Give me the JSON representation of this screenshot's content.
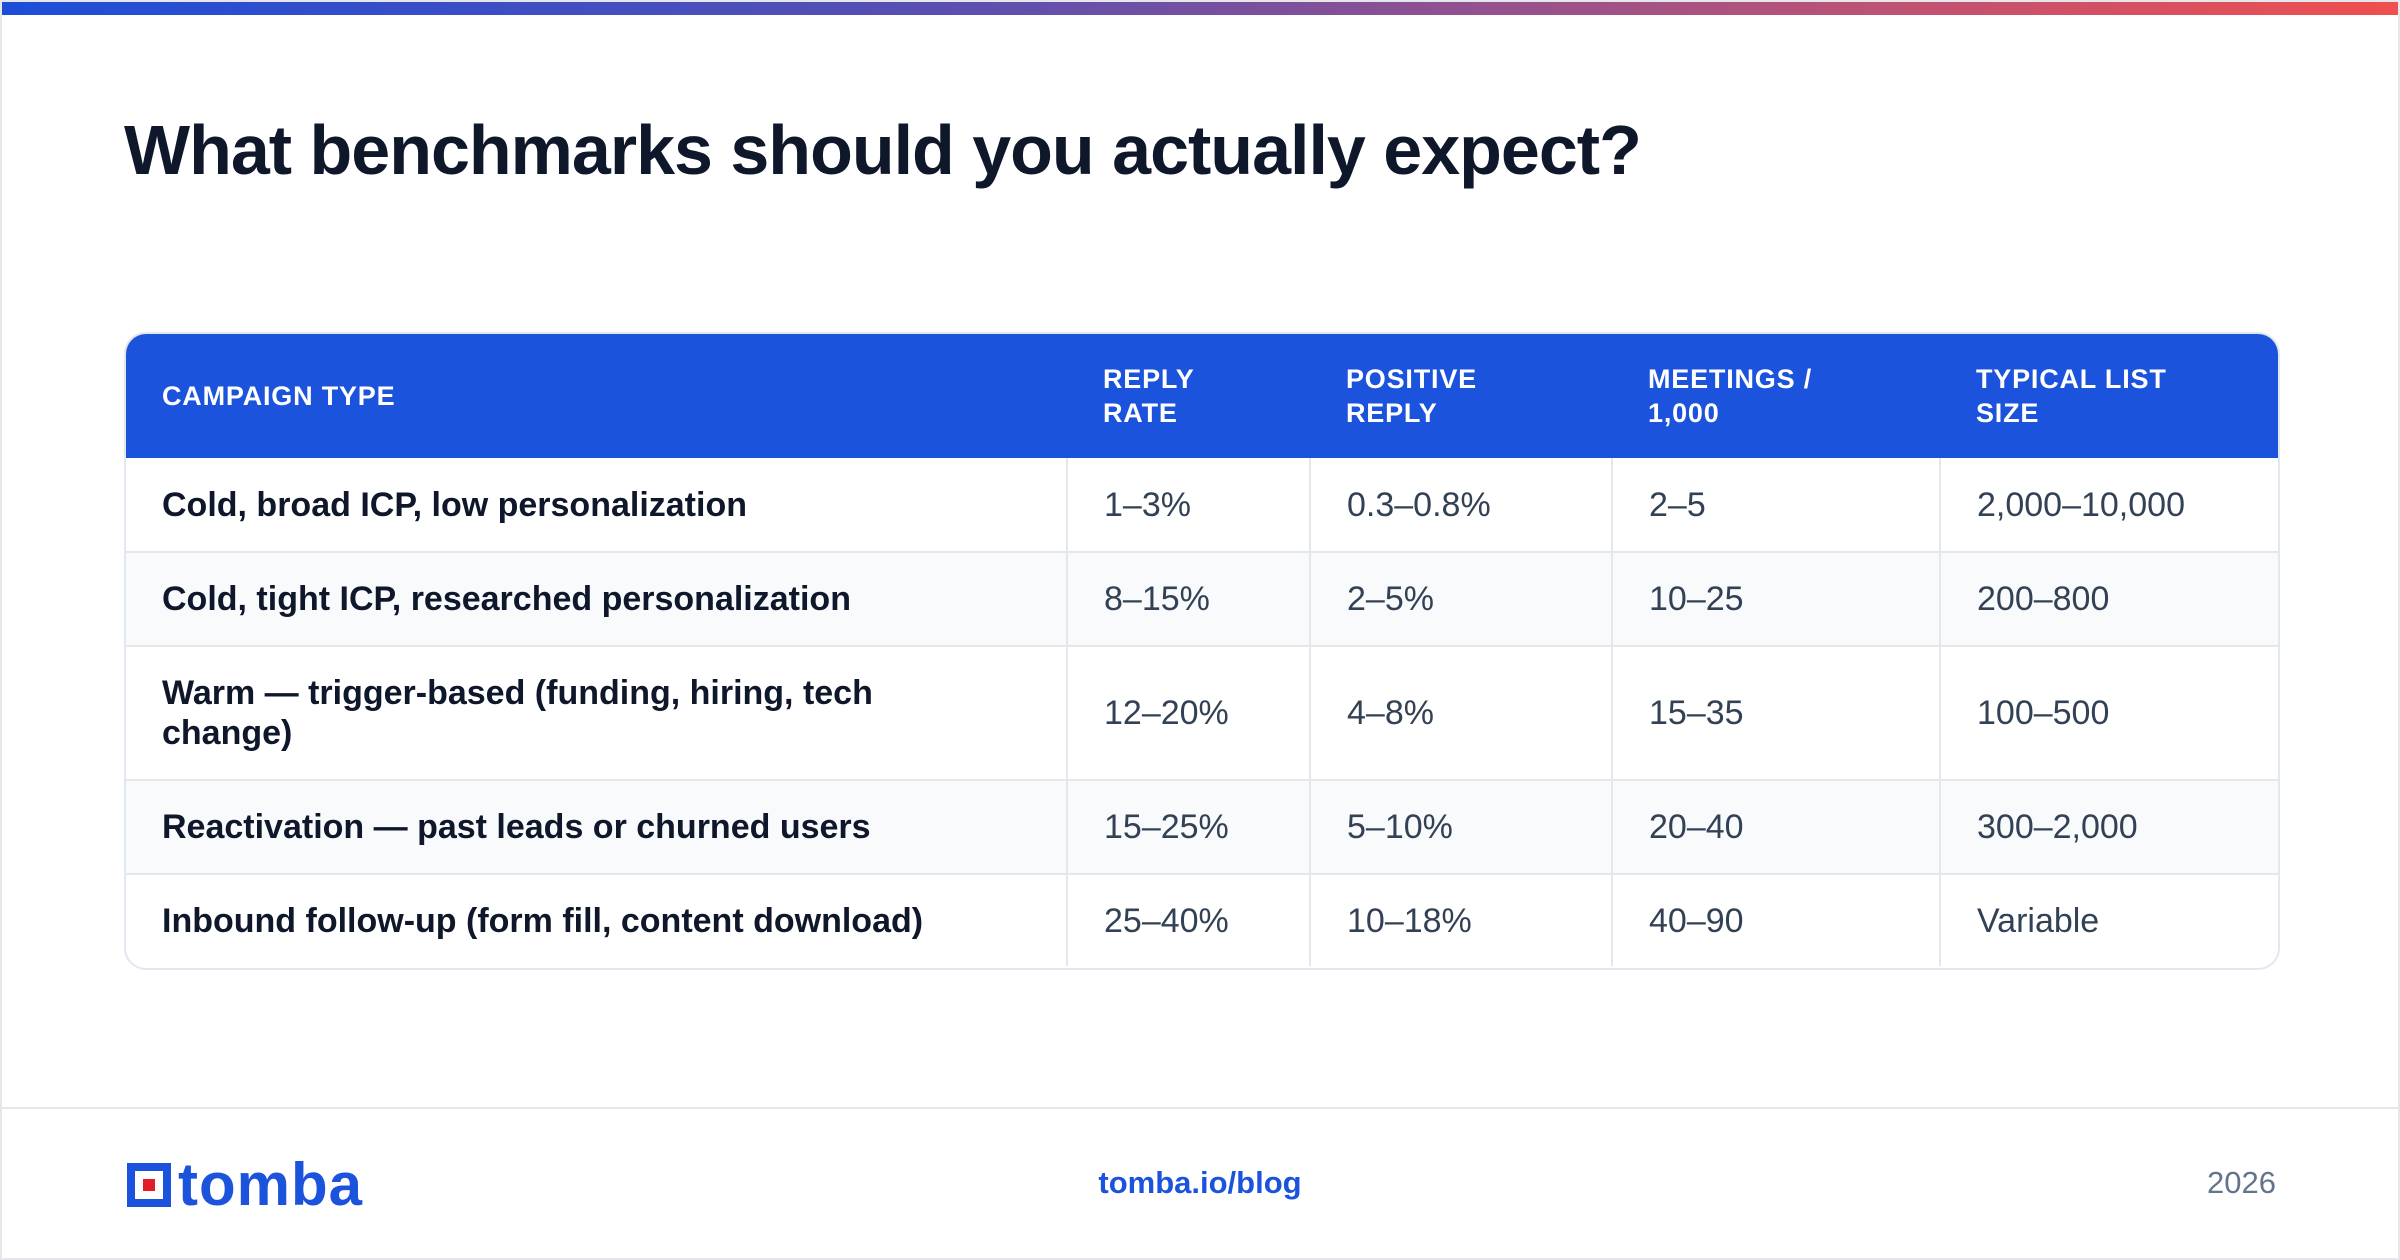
{
  "title": "What benchmarks should you actually expect?",
  "table": {
    "headers": [
      [
        "CAMPAIGN TYPE"
      ],
      [
        "REPLY",
        "RATE"
      ],
      [
        "POSITIVE",
        "REPLY"
      ],
      [
        "MEETINGS /",
        "1,000"
      ],
      [
        "TYPICAL LIST",
        "SIZE"
      ]
    ],
    "rows": [
      {
        "campaign_type": [
          "Cold, broad ICP, low personalization"
        ],
        "reply_rate": "1–3%",
        "positive_reply": "0.3–0.8%",
        "meetings_per_1000": "2–5",
        "list_size": "2,000–10,000"
      },
      {
        "campaign_type": [
          "Cold, tight ICP, researched personalization"
        ],
        "reply_rate": "8–15%",
        "positive_reply": "2–5%",
        "meetings_per_1000": "10–25",
        "list_size": "200–800"
      },
      {
        "campaign_type": [
          "Warm — trigger-based (funding, hiring, tech",
          "change)"
        ],
        "reply_rate": "12–20%",
        "positive_reply": "4–8%",
        "meetings_per_1000": "15–35",
        "list_size": "100–500"
      },
      {
        "campaign_type": [
          "Reactivation — past leads or churned users"
        ],
        "reply_rate": "15–25%",
        "positive_reply": "5–10%",
        "meetings_per_1000": "20–40",
        "list_size": "300–2,000"
      },
      {
        "campaign_type": [
          "Inbound follow-up (form fill, content download)"
        ],
        "reply_rate": "25–40%",
        "positive_reply": "10–18%",
        "meetings_per_1000": "40–90",
        "list_size": "Variable"
      }
    ]
  },
  "footer": {
    "logo_text": "tomba",
    "link": "tomba.io/blog",
    "year": "2026"
  },
  "colors": {
    "brand_blue": "#1c53dc",
    "logo_red": "#e11d2a",
    "gradient_start": "#1d4ed8",
    "gradient_end": "#ef4f4f"
  }
}
